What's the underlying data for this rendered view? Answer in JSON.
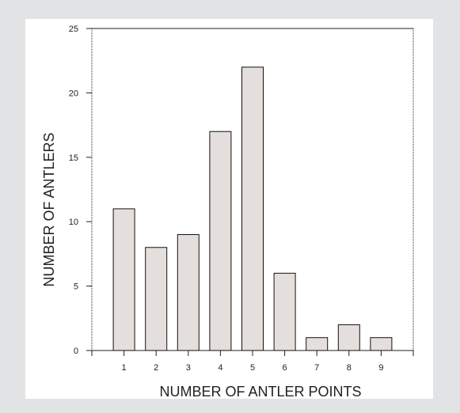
{
  "chart_data": {
    "type": "bar",
    "xlabel": "NUMBER OF ANTLER POINTS",
    "ylabel": "NUMBER OF ANTLERS",
    "categories": [
      "1",
      "2",
      "3",
      "4",
      "5",
      "6",
      "7",
      "8",
      "9"
    ],
    "values": [
      11,
      8,
      9,
      17,
      22,
      6,
      1,
      2,
      1
    ],
    "ylim": [
      0,
      25
    ],
    "yticks": [
      "0",
      "5",
      "10",
      "15",
      "20",
      "25"
    ],
    "grid": false,
    "colors": {
      "bar_fill": "#e4dfdd",
      "bar_stroke": "#111111",
      "axis": "#222222",
      "background": "#e2e3e4",
      "panel": "#ffffff"
    }
  }
}
